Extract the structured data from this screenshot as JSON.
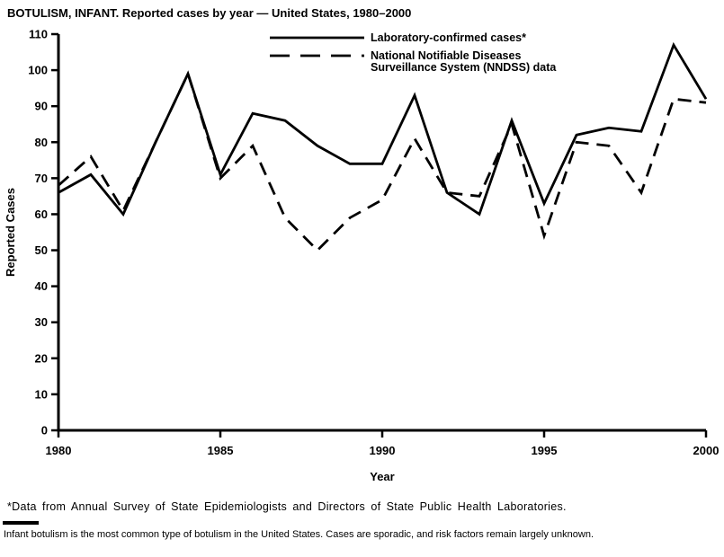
{
  "page": {
    "title": "BOTULISM, INFANT. Reported cases by year — United States, 1980–2000",
    "footnote_primary": "*Data from Annual Survey of State Epidemiologists and Directors of State Public Health Laboratories.",
    "footnote_secondary": "Infant botulism is the most common type of botulism in the United States. Cases are sporadic, and risk factors remain largely unknown."
  },
  "chart_data": {
    "type": "line",
    "title": "BOTULISM, INFANT. Reported cases by year — United States, 1980–2000",
    "xlabel": "Year",
    "ylabel": "Reported Cases",
    "x": [
      1980,
      1981,
      1982,
      1983,
      1984,
      1985,
      1986,
      1987,
      1988,
      1989,
      1990,
      1991,
      1992,
      1993,
      1994,
      1995,
      1996,
      1997,
      1998,
      1999,
      2000
    ],
    "series": [
      {
        "name": "Laboratory-confirmed cases*",
        "legend_lines": [
          "Laboratory-confirmed cases*"
        ],
        "style": "solid",
        "values": [
          66,
          71,
          60,
          80,
          99,
          71,
          88,
          86,
          79,
          74,
          74,
          93,
          66,
          60,
          86,
          63,
          82,
          84,
          83,
          107,
          92
        ]
      },
      {
        "name": "National Notifiable Diseases Surveillance System (NNDSS) data",
        "legend_lines": [
          "National Notifiable Diseases",
          "Surveillance System (NNDSS) data"
        ],
        "style": "dashed",
        "values": [
          68,
          76,
          61,
          80,
          99,
          70,
          79,
          59,
          50,
          59,
          64,
          81,
          66,
          65,
          85,
          54,
          80,
          79,
          66,
          92,
          91
        ]
      }
    ],
    "ylim": [
      0,
      110
    ],
    "ytick_step": 10,
    "xticks": [
      1980,
      1985,
      1990,
      1995,
      2000
    ],
    "legend_position": "top-center-inside",
    "grid": false,
    "line_color": "#000000"
  }
}
